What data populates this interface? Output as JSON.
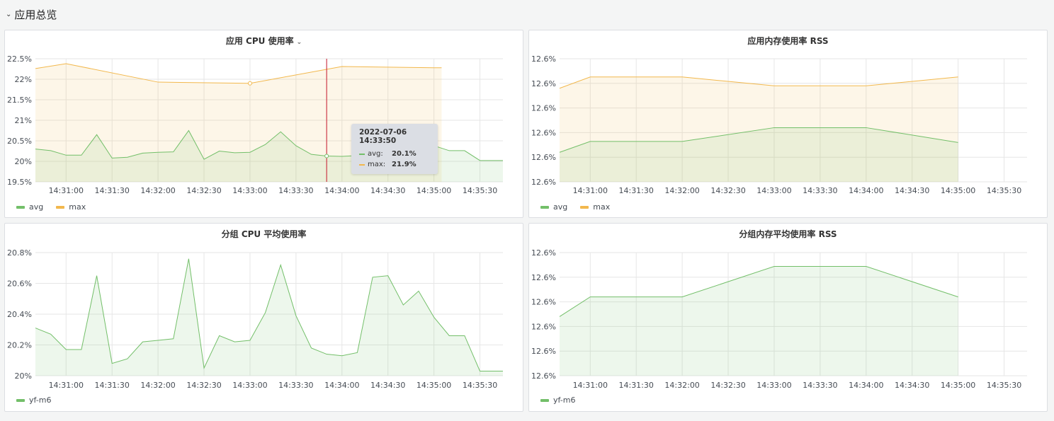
{
  "row": {
    "title": "应用总览",
    "chevron_icon": "chevron-down-icon"
  },
  "colors": {
    "avg": "#73bf69",
    "max": "#f2b84d",
    "marker": "#c4162a"
  },
  "panels": [
    {
      "id": "p1",
      "title": "应用 CPU 使用率",
      "has_dropdown": true,
      "legend": [
        {
          "name": "avg",
          "color": "#73bf69"
        },
        {
          "name": "max",
          "color": "#f2b84d"
        }
      ],
      "tooltip": {
        "time": "2022-07-06 14:33:50",
        "rows": [
          {
            "name": "avg:",
            "value": "20.1%",
            "color": "#73bf69"
          },
          {
            "name": "max:",
            "value": "21.9%",
            "color": "#f2b84d"
          }
        ]
      }
    },
    {
      "id": "p2",
      "title": "应用内存使用率 RSS",
      "has_dropdown": false,
      "legend": [
        {
          "name": "avg",
          "color": "#73bf69"
        },
        {
          "name": "max",
          "color": "#f2b84d"
        }
      ]
    },
    {
      "id": "p3",
      "title": "分组 CPU 平均使用率",
      "has_dropdown": false,
      "legend": [
        {
          "name": "yf-m6",
          "color": "#73bf69"
        }
      ]
    },
    {
      "id": "p4",
      "title": "分组内存平均使用率 RSS",
      "has_dropdown": false,
      "legend": [
        {
          "name": "yf-m6",
          "color": "#73bf69"
        }
      ]
    }
  ],
  "chart_data": [
    {
      "type": "area",
      "title": "应用 CPU 使用率",
      "x_ticks": [
        "14:31:00",
        "14:31:30",
        "14:32:00",
        "14:32:30",
        "14:33:00",
        "14:33:30",
        "14:34:00",
        "14:34:30",
        "14:35:00",
        "14:35:30"
      ],
      "x_range": [
        "14:30:40",
        "14:35:45"
      ],
      "y_ticks": [
        "22.5%",
        "22%",
        "21.5%",
        "21%",
        "20.5%",
        "20%",
        "19.5%"
      ],
      "ylim": [
        19.5,
        22.5
      ],
      "grid": true,
      "legend_position": "bottom-left",
      "series": [
        {
          "name": "avg",
          "color": "#73bf69",
          "points": [
            [
              "14:30:40",
              20.3
            ],
            [
              "14:30:50",
              20.26
            ],
            [
              "14:31:00",
              20.15
            ],
            [
              "14:31:10",
              20.15
            ],
            [
              "14:31:20",
              20.65
            ],
            [
              "14:31:30",
              20.08
            ],
            [
              "14:31:40",
              20.1
            ],
            [
              "14:31:50",
              20.2
            ],
            [
              "14:32:00",
              20.22
            ],
            [
              "14:32:10",
              20.23
            ],
            [
              "14:32:20",
              20.75
            ],
            [
              "14:32:30",
              20.05
            ],
            [
              "14:32:40",
              20.25
            ],
            [
              "14:32:50",
              20.21
            ],
            [
              "14:33:00",
              20.22
            ],
            [
              "14:33:10",
              20.41
            ],
            [
              "14:33:20",
              20.72
            ],
            [
              "14:33:30",
              20.38
            ],
            [
              "14:33:40",
              20.17
            ],
            [
              "14:33:50",
              20.13
            ],
            [
              "14:34:00",
              20.12
            ],
            [
              "14:34:10",
              20.14
            ],
            [
              "14:34:20",
              20.63
            ],
            [
              "14:34:30",
              20.65
            ],
            [
              "14:34:40",
              20.46
            ],
            [
              "14:34:50",
              20.55
            ],
            [
              "14:35:00",
              20.38
            ],
            [
              "14:35:10",
              20.26
            ],
            [
              "14:35:20",
              20.26
            ],
            [
              "14:35:30",
              20.02
            ],
            [
              "14:35:45",
              20.02
            ]
          ]
        },
        {
          "name": "max",
          "color": "#f2b84d",
          "points": [
            [
              "14:30:40",
              22.26
            ],
            [
              "14:31:00",
              22.38
            ],
            [
              "14:32:00",
              21.93
            ],
            [
              "14:33:00",
              21.9
            ],
            [
              "14:34:00",
              22.31
            ],
            [
              "14:35:00",
              22.28
            ],
            [
              "14:35:05",
              22.28
            ]
          ]
        }
      ],
      "marker_time": "14:33:50"
    },
    {
      "type": "area",
      "title": "应用内存使用率 RSS",
      "x_ticks": [
        "14:31:00",
        "14:31:30",
        "14:32:00",
        "14:32:30",
        "14:33:00",
        "14:33:30",
        "14:34:00",
        "14:34:30",
        "14:35:00",
        "14:35:30"
      ],
      "x_range": [
        "14:30:40",
        "14:35:45"
      ],
      "y_ticks": [
        "12.6%",
        "12.6%",
        "12.6%",
        "12.6%",
        "12.6%",
        "12.6%"
      ],
      "ylim": [
        0,
        5
      ],
      "y_note": "all tick labels read 12.6%; y values on relative 0-5 scale",
      "grid": true,
      "legend_position": "bottom-left",
      "series": [
        {
          "name": "avg",
          "color": "#73bf69",
          "points": [
            [
              "14:30:40",
              1.2
            ],
            [
              "14:31:00",
              1.64
            ],
            [
              "14:32:00",
              1.64
            ],
            [
              "14:33:00",
              2.2
            ],
            [
              "14:34:00",
              2.2
            ],
            [
              "14:35:00",
              1.6
            ]
          ]
        },
        {
          "name": "max",
          "color": "#f2b84d",
          "points": [
            [
              "14:30:40",
              3.8
            ],
            [
              "14:31:00",
              4.26
            ],
            [
              "14:32:00",
              4.26
            ],
            [
              "14:33:00",
              3.9
            ],
            [
              "14:34:00",
              3.9
            ],
            [
              "14:35:00",
              4.26
            ]
          ]
        }
      ]
    },
    {
      "type": "area",
      "title": "分组 CPU 平均使用率",
      "x_ticks": [
        "14:31:00",
        "14:31:30",
        "14:32:00",
        "14:32:30",
        "14:33:00",
        "14:33:30",
        "14:34:00",
        "14:34:30",
        "14:35:00",
        "14:35:30"
      ],
      "x_range": [
        "14:30:40",
        "14:35:45"
      ],
      "y_ticks": [
        "20.8%",
        "20.6%",
        "20.4%",
        "20.2%",
        "20%"
      ],
      "ylim": [
        20.0,
        20.8
      ],
      "grid": true,
      "legend_position": "bottom-left",
      "series": [
        {
          "name": "yf-m6",
          "color": "#73bf69",
          "points": [
            [
              "14:30:40",
              20.31
            ],
            [
              "14:30:50",
              20.27
            ],
            [
              "14:31:00",
              20.17
            ],
            [
              "14:31:10",
              20.17
            ],
            [
              "14:31:20",
              20.65
            ],
            [
              "14:31:30",
              20.08
            ],
            [
              "14:31:40",
              20.11
            ],
            [
              "14:31:50",
              20.22
            ],
            [
              "14:32:00",
              20.23
            ],
            [
              "14:32:10",
              20.24
            ],
            [
              "14:32:20",
              20.76
            ],
            [
              "14:32:30",
              20.05
            ],
            [
              "14:32:40",
              20.26
            ],
            [
              "14:32:50",
              20.22
            ],
            [
              "14:33:00",
              20.23
            ],
            [
              "14:33:10",
              20.41
            ],
            [
              "14:33:20",
              20.72
            ],
            [
              "14:33:30",
              20.39
            ],
            [
              "14:33:40",
              20.18
            ],
            [
              "14:33:50",
              20.14
            ],
            [
              "14:34:00",
              20.13
            ],
            [
              "14:34:10",
              20.15
            ],
            [
              "14:34:20",
              20.64
            ],
            [
              "14:34:30",
              20.65
            ],
            [
              "14:34:40",
              20.46
            ],
            [
              "14:34:50",
              20.55
            ],
            [
              "14:35:00",
              20.38
            ],
            [
              "14:35:10",
              20.26
            ],
            [
              "14:35:20",
              20.26
            ],
            [
              "14:35:30",
              20.03
            ],
            [
              "14:35:45",
              20.03
            ]
          ]
        }
      ]
    },
    {
      "type": "area",
      "title": "分组内存平均使用率 RSS",
      "x_ticks": [
        "14:31:00",
        "14:31:30",
        "14:32:00",
        "14:32:30",
        "14:33:00",
        "14:33:30",
        "14:34:00",
        "14:34:30",
        "14:35:00",
        "14:35:30"
      ],
      "x_range": [
        "14:30:40",
        "14:35:45"
      ],
      "y_ticks": [
        "12.6%",
        "12.6%",
        "12.6%",
        "12.6%",
        "12.6%",
        "12.6%"
      ],
      "ylim": [
        0,
        5
      ],
      "y_note": "all tick labels read 12.6%; y values on relative 0-5 scale",
      "grid": true,
      "legend_position": "bottom-left",
      "series": [
        {
          "name": "yf-m6",
          "color": "#73bf69",
          "points": [
            [
              "14:30:40",
              2.4
            ],
            [
              "14:31:00",
              3.2
            ],
            [
              "14:32:00",
              3.2
            ],
            [
              "14:33:00",
              4.44
            ],
            [
              "14:34:00",
              4.44
            ],
            [
              "14:35:00",
              3.2
            ]
          ]
        }
      ]
    }
  ]
}
